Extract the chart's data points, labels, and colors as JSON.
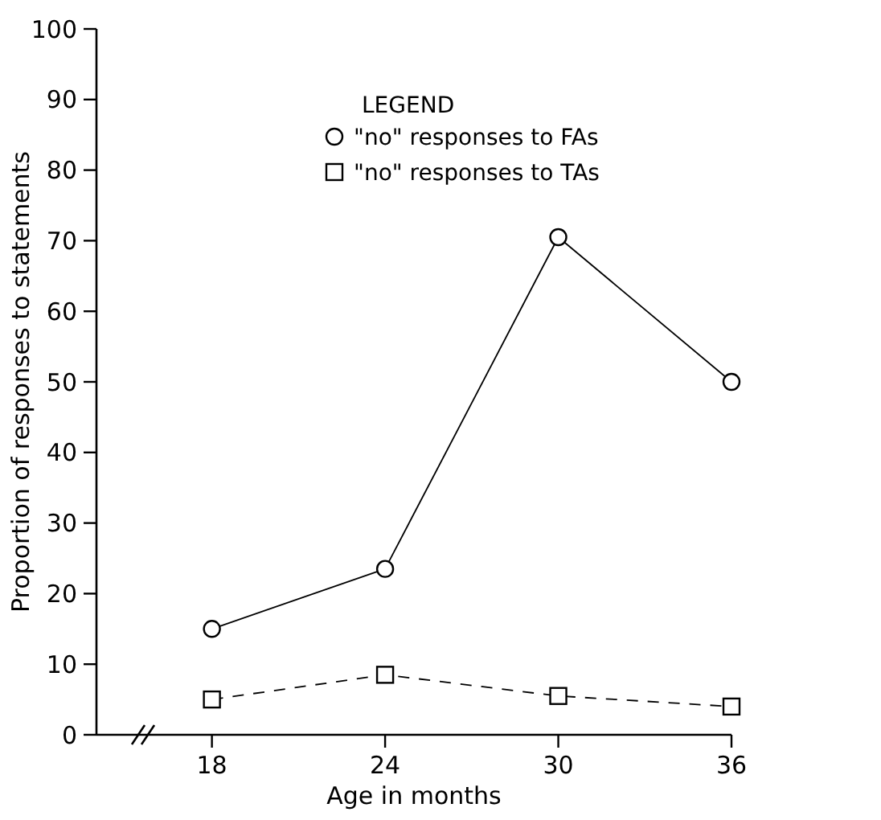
{
  "chart_data": {
    "type": "line",
    "xlabel": "Age in months",
    "ylabel": "Proportion of responses to statements",
    "legend_title": "LEGEND",
    "legend": "top",
    "grid": false,
    "x": [
      18,
      24,
      30,
      36
    ],
    "xlim": [
      14,
      36
    ],
    "xticks": [
      18,
      24,
      30,
      36
    ],
    "ylim": [
      0,
      100
    ],
    "yticks": [
      0,
      10,
      20,
      30,
      40,
      50,
      60,
      70,
      80,
      90,
      100
    ],
    "series": [
      {
        "name": "\"no\" responses to FAs",
        "color": "#000000",
        "marker": "circle",
        "line_style": "solid",
        "values": [
          15,
          23.5,
          70.5,
          50
        ]
      },
      {
        "name": "\"no\" responses to TAs",
        "color": "#000000",
        "marker": "square",
        "line_style": "dashed",
        "values": [
          5,
          8.5,
          5.5,
          4
        ]
      }
    ]
  }
}
